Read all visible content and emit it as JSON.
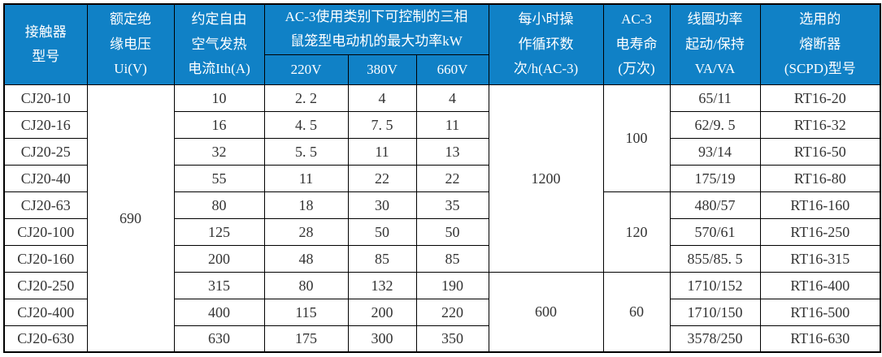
{
  "chart_data": {
    "type": "table",
    "columns": {
      "model": "接触器\n型号",
      "rated_insulation_voltage": "额定绝\n缘电压\nUi(V)",
      "thermal_current": "约定自由\n空气发热\n电流Ith(A)",
      "ac3_power_group": "AC-3使用类别下可控制的三相\n鼠笼型电动机的最大功率kW",
      "v220": "220V",
      "v380": "380V",
      "v660": "660V",
      "cycles_per_hour": "每小时操\n作循环数\n次/h(AC-3)",
      "electrical_life": "AC-3\n电寿命\n(万次)",
      "coil_power": "线圈功率\n起动/保持\nVA/VA",
      "fuse": "选用的\n熔断器\n(SCPD)型号"
    },
    "merged": {
      "rated_insulation_voltage": "690",
      "cycles_rows_1_7": "1200",
      "cycles_rows_8_10": "600",
      "life_rows_1_4": "100",
      "life_rows_5_7": "120",
      "life_rows_8_10": "60"
    },
    "rows": [
      {
        "model": "CJ20-10",
        "ith": "10",
        "p220": "2. 2",
        "p380": "4",
        "p660": "4",
        "coil": "65/11",
        "fuse": "RT16-20"
      },
      {
        "model": "CJ20-16",
        "ith": "16",
        "p220": "4. 5",
        "p380": "7. 5",
        "p660": "11",
        "coil": "62/9. 5",
        "fuse": "RT16-32"
      },
      {
        "model": "CJ20-25",
        "ith": "32",
        "p220": "5. 5",
        "p380": "11",
        "p660": "13",
        "coil": "93/14",
        "fuse": "RT16-50"
      },
      {
        "model": "CJ20-40",
        "ith": "55",
        "p220": "11",
        "p380": "22",
        "p660": "22",
        "coil": "175/19",
        "fuse": "RT16-80"
      },
      {
        "model": "CJ20-63",
        "ith": "80",
        "p220": "18",
        "p380": "30",
        "p660": "35",
        "coil": "480/57",
        "fuse": "RT16-160"
      },
      {
        "model": "CJ20-100",
        "ith": "125",
        "p220": "28",
        "p380": "50",
        "p660": "50",
        "coil": "570/61",
        "fuse": "RT16-250"
      },
      {
        "model": "CJ20-160",
        "ith": "200",
        "p220": "48",
        "p380": "85",
        "p660": "85",
        "coil": "855/85. 5",
        "fuse": "RT16-315"
      },
      {
        "model": "CJ20-250",
        "ith": "315",
        "p220": "80",
        "p380": "132",
        "p660": "190",
        "coil": "1710/152",
        "fuse": "RT16-400"
      },
      {
        "model": "CJ20-400",
        "ith": "400",
        "p220": "115",
        "p380": "200",
        "p660": "220",
        "coil": "1710/150",
        "fuse": "RT16-500"
      },
      {
        "model": "CJ20-630",
        "ith": "630",
        "p220": "175",
        "p380": "300",
        "p660": "350",
        "coil": "3578/250",
        "fuse": "RT16-630"
      }
    ],
    "layout_hints": {
      "header_rows": 2,
      "data_rows": 10
    }
  },
  "colors": {
    "header_background": "#1081c6",
    "header_text": "#ffffff",
    "border": "#000000",
    "cell_text": "#333333"
  }
}
